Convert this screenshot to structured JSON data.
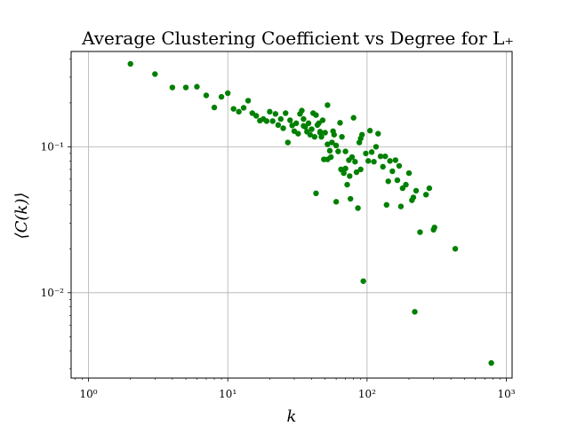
{
  "chart_data": {
    "type": "scatter",
    "title": "Average Clustering Coefficient vs Degree for L₊",
    "xlabel": "k",
    "ylabel": "⟨C(k)⟩",
    "xscale": "log",
    "yscale": "log",
    "xlim": [
      0.75,
      1100
    ],
    "ylim": [
      0.0026,
      0.45
    ],
    "x_ticks": [
      1,
      10,
      100,
      1000
    ],
    "x_tick_labels": [
      "10⁰",
      "10¹",
      "10²",
      "10³"
    ],
    "y_ticks": [
      0.01,
      0.1
    ],
    "y_tick_labels": [
      "10⁻²",
      "10⁻¹"
    ],
    "grid": true,
    "marker_color": "#008000",
    "points": [
      [
        2,
        0.37
      ],
      [
        3,
        0.315
      ],
      [
        4,
        0.255
      ],
      [
        5,
        0.255
      ],
      [
        6,
        0.258
      ],
      [
        7,
        0.225
      ],
      [
        8,
        0.186
      ],
      [
        9,
        0.22
      ],
      [
        10,
        0.233
      ],
      [
        11,
        0.182
      ],
      [
        12,
        0.174
      ],
      [
        13,
        0.185
      ],
      [
        14,
        0.207
      ],
      [
        15,
        0.17
      ],
      [
        16,
        0.163
      ],
      [
        17,
        0.151
      ],
      [
        18,
        0.155
      ],
      [
        19,
        0.15
      ],
      [
        20,
        0.174
      ],
      [
        21,
        0.15
      ],
      [
        22,
        0.168
      ],
      [
        23,
        0.141
      ],
      [
        24,
        0.155
      ],
      [
        25,
        0.134
      ],
      [
        26,
        0.17
      ],
      [
        27,
        0.107
      ],
      [
        28,
        0.152
      ],
      [
        29,
        0.14
      ],
      [
        30,
        0.128
      ],
      [
        31,
        0.145
      ],
      [
        32,
        0.123
      ],
      [
        33,
        0.168
      ],
      [
        34,
        0.177
      ],
      [
        35,
        0.155
      ],
      [
        36,
        0.137
      ],
      [
        37,
        0.127
      ],
      [
        38,
        0.145
      ],
      [
        39,
        0.121
      ],
      [
        40,
        0.132
      ],
      [
        41,
        0.17
      ],
      [
        42,
        0.117
      ],
      [
        43,
        0.165
      ],
      [
        44,
        0.141
      ],
      [
        45,
        0.145
      ],
      [
        46,
        0.127
      ],
      [
        47,
        0.117
      ],
      [
        48,
        0.152
      ],
      [
        49,
        0.082
      ],
      [
        50,
        0.125
      ],
      [
        52,
        0.193
      ],
      [
        52,
        0.104
      ],
      [
        54,
        0.094
      ],
      [
        55,
        0.085
      ],
      [
        56,
        0.107
      ],
      [
        57,
        0.128
      ],
      [
        58,
        0.121
      ],
      [
        60,
        0.102
      ],
      [
        62,
        0.093
      ],
      [
        64,
        0.146
      ],
      [
        65,
        0.07
      ],
      [
        66,
        0.117
      ],
      [
        68,
        0.066
      ],
      [
        70,
        0.093
      ],
      [
        72,
        0.055
      ],
      [
        74,
        0.081
      ],
      [
        76,
        0.044
      ],
      [
        78,
        0.085
      ],
      [
        80,
        0.158
      ],
      [
        82,
        0.079
      ],
      [
        84,
        0.067
      ],
      [
        86,
        0.038
      ],
      [
        88,
        0.107
      ],
      [
        90,
        0.114
      ],
      [
        92,
        0.121
      ],
      [
        94,
        0.012
      ],
      [
        98,
        0.09
      ],
      [
        102,
        0.08
      ],
      [
        105,
        0.129
      ],
      [
        108,
        0.092
      ],
      [
        112,
        0.079
      ],
      [
        116,
        0.1
      ],
      [
        120,
        0.123
      ],
      [
        125,
        0.086
      ],
      [
        130,
        0.073
      ],
      [
        135,
        0.086
      ],
      [
        138,
        0.04
      ],
      [
        142,
        0.058
      ],
      [
        146,
        0.08
      ],
      [
        152,
        0.068
      ],
      [
        160,
        0.081
      ],
      [
        165,
        0.059
      ],
      [
        170,
        0.074
      ],
      [
        175,
        0.039
      ],
      [
        180,
        0.052
      ],
      [
        190,
        0.055
      ],
      [
        200,
        0.066
      ],
      [
        210,
        0.043
      ],
      [
        215,
        0.045
      ],
      [
        220,
        0.0074
      ],
      [
        225,
        0.05
      ],
      [
        240,
        0.026
      ],
      [
        265,
        0.047
      ],
      [
        280,
        0.052
      ],
      [
        300,
        0.027
      ],
      [
        305,
        0.028
      ],
      [
        430,
        0.02
      ],
      [
        780,
        0.0033
      ],
      [
        43,
        0.048
      ],
      [
        60,
        0.042
      ],
      [
        35,
        0.139
      ],
      [
        46,
        0.125
      ],
      [
        52,
        0.082
      ],
      [
        75,
        0.063
      ],
      [
        70,
        0.071
      ],
      [
        90,
        0.07
      ]
    ]
  }
}
